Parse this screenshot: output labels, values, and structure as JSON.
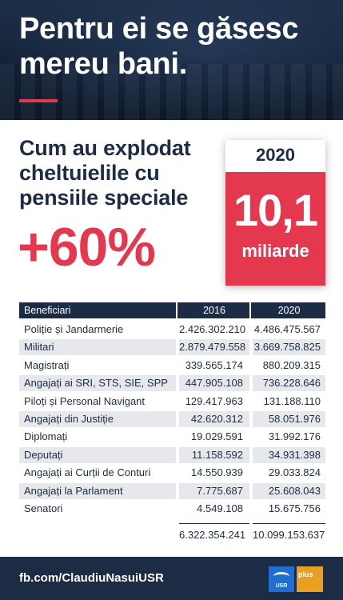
{
  "header": {
    "headline_line1": "Pentru ei se găsesc",
    "headline_line2": "mereu bani."
  },
  "subtitle": {
    "line1": "Cum au explodat",
    "line2": "cheltuielile cu",
    "line3": "pensiile speciale"
  },
  "increase": "+60%",
  "card": {
    "year": "2020",
    "value": "10,1",
    "unit": "miliarde"
  },
  "table": {
    "headers": [
      "Beneficiari",
      "2016",
      "2020"
    ],
    "rows": [
      {
        "name": "Poliție și Jandarmerie",
        "v2016": "2.426.302.210",
        "v2020": "4.486.475.567"
      },
      {
        "name": "Militari",
        "v2016": "2.879.479.558",
        "v2020": "3.669.758.825"
      },
      {
        "name": "Magistrați",
        "v2016": "339.565.174",
        "v2020": "880.209.315"
      },
      {
        "name": "Angajați ai SRI, STS, SIE, SPP",
        "v2016": "447.905.108",
        "v2020": "736.228.646"
      },
      {
        "name": "Piloți și Personal Navigant",
        "v2016": "129.417.963",
        "v2020": "131.188.110"
      },
      {
        "name": "Angajați din Justiție",
        "v2016": "42.620.312",
        "v2020": "58.051.976"
      },
      {
        "name": "Diplomați",
        "v2016": "19.029.591",
        "v2020": "31.992.176"
      },
      {
        "name": "Deputați",
        "v2016": "11.158.592",
        "v2020": "34.931.398"
      },
      {
        "name": "Angajați ai Curții de Conturi",
        "v2016": "14.550.939",
        "v2020": "29.033.824"
      },
      {
        "name": "Angajați la Parlament",
        "v2016": "7.775.687",
        "v2020": "25.608.043"
      },
      {
        "name": "Senatori",
        "v2016": "4.549.108",
        "v2020": "15.675.756"
      }
    ],
    "totals": {
      "v2016": "6.322.354.241",
      "v2020": "10.099.153.637"
    }
  },
  "footer": {
    "link": "fb.com/ClaudiuNasuiUSR",
    "logo_usr": "USR",
    "logo_plus": "plus"
  },
  "colors": {
    "navy": "#1c2c44",
    "red": "#e4384e",
    "usr_blue": "#1f6fd0",
    "plus_orange": "#e8a022"
  }
}
